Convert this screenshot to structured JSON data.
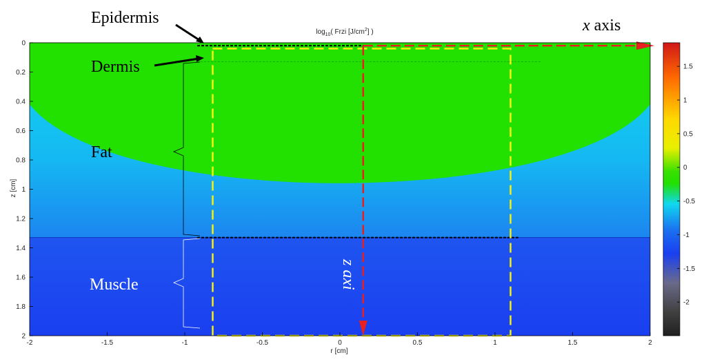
{
  "chart_data": {
    "type": "heatmap",
    "title_prefix": "log",
    "title_sub": "10",
    "title_main": "( Frzi [J/cm",
    "title_sup": "2",
    "title_end": "] )",
    "xlabel": "r [cm]",
    "ylabel": "z [cm]",
    "xlim": [
      -2,
      2
    ],
    "ylim": [
      0,
      2
    ],
    "x_ticks": [
      "-2",
      "-1.5",
      "-1",
      "-0.5",
      "0",
      "0.5",
      "1",
      "1.5",
      "2"
    ],
    "y_ticks": [
      "0",
      "0.2",
      "0.4",
      "0.6",
      "0.8",
      "1",
      "1.2",
      "1.4",
      "1.6",
      "1.8",
      "2"
    ],
    "colorbar": {
      "range": [
        -2.5,
        1.85
      ],
      "ticks": [
        "1.5",
        "1",
        "0.5",
        "0",
        "-0.5",
        "-1",
        "-1.5",
        "-2"
      ],
      "tick_values": [
        1.5,
        1,
        0.5,
        0,
        -0.5,
        -1,
        -1.5,
        -2
      ]
    },
    "layers": [
      {
        "name": "Epidermis",
        "z_top": 0.0,
        "z_bottom": 0.01
      },
      {
        "name": "Dermis",
        "z_top": 0.01,
        "z_bottom": 0.13
      },
      {
        "name": "Fat",
        "z_top": 0.13,
        "z_bottom": 1.33
      },
      {
        "name": "Muscle",
        "z_top": 1.33,
        "z_bottom": 2.0
      }
    ],
    "annotations": {
      "epidermis": "Epidermis",
      "dermis": "Dermis",
      "fat": "Fat",
      "muscle": "Muscle",
      "x_axis_italic": "x",
      "x_axis_word": " axis",
      "z_axis": "z axi"
    },
    "boundaries": {
      "fat_muscle_z": 1.33,
      "green_region_depth_center_z": 0.95,
      "green_region_depth_edge_z": 0.42,
      "yellow_box": {
        "r_min": -0.82,
        "r_max": 1.1,
        "z_min": 0.04,
        "z_max": 2.0
      },
      "axis_r": 0.15
    },
    "colors": {
      "green": "#22e000",
      "cyan": "#10d8ef",
      "blue_top": "#1f55f0",
      "blue_bottom": "#1a3ff0",
      "arrow_red": "#e82020",
      "dashed_yellow": "#f5f012",
      "dashed_black": "#000000"
    }
  }
}
